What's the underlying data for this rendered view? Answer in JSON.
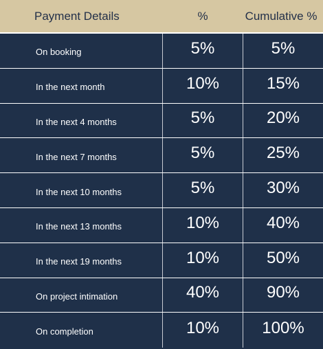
{
  "table": {
    "headers": {
      "details": "Payment Details",
      "percent": "%",
      "cumulative": "Cumulative %"
    },
    "rows": [
      {
        "label": "On booking",
        "percent": "5%",
        "cumulative": "5%"
      },
      {
        "label": "In the next month",
        "percent": "10%",
        "cumulative": "15%"
      },
      {
        "label": "In the next 4 months",
        "percent": "5%",
        "cumulative": "20%"
      },
      {
        "label": "In the next 7 months",
        "percent": "5%",
        "cumulative": "25%"
      },
      {
        "label": "In the next 10 months",
        "percent": "5%",
        "cumulative": "30%"
      },
      {
        "label": "In the next 13 months",
        "percent": "10%",
        "cumulative": "40%"
      },
      {
        "label": "In the next 19 months",
        "percent": "10%",
        "cumulative": "50%"
      },
      {
        "label": "On project intimation",
        "percent": "40%",
        "cumulative": "90%"
      },
      {
        "label": "On completion",
        "percent": "10%",
        "cumulative": "100%"
      }
    ]
  },
  "colors": {
    "header_bg": "#d6c7a2",
    "header_text": "#233049",
    "body_bg": "#1f3049",
    "body_text": "#ffffff"
  }
}
